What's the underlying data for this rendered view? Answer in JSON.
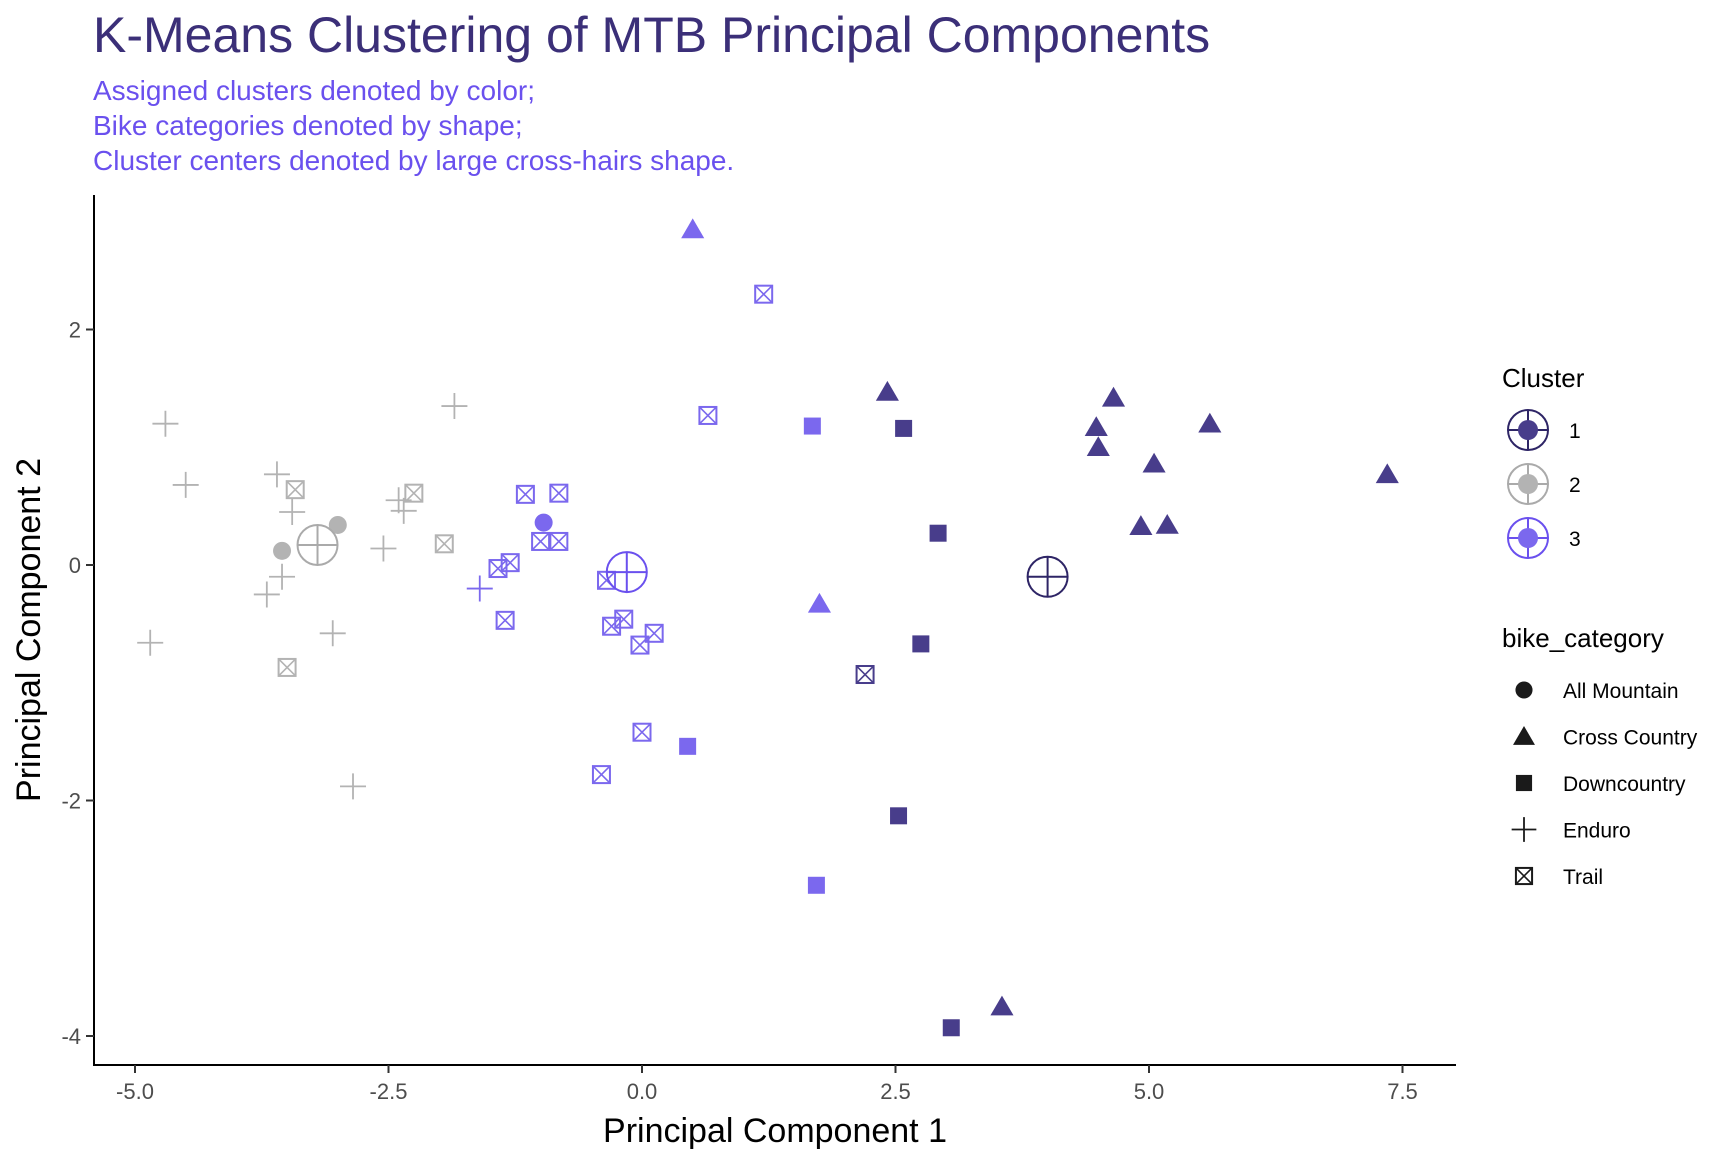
{
  "chart_data": {
    "type": "scatter",
    "title": "K-Means Clustering of MTB Principal Components",
    "subtitle": [
      "Assigned clusters denoted by color;",
      "Bike categories denoted by shape;",
      "Cluster centers denoted by large cross-hairs shape."
    ],
    "xlabel": "Principal Component 1",
    "ylabel": "Principal Component 2",
    "xlim": [
      -5.4,
      8.0
    ],
    "ylim": [
      -4.25,
      3.15
    ],
    "xticks": [
      {
        "value": -5.0,
        "label": "-5.0"
      },
      {
        "value": -2.5,
        "label": "-2.5"
      },
      {
        "value": 0.0,
        "label": "0.0"
      },
      {
        "value": 2.5,
        "label": "2.5"
      },
      {
        "value": 5.0,
        "label": "5.0"
      },
      {
        "value": 7.5,
        "label": "7.5"
      }
    ],
    "yticks": [
      {
        "value": 2,
        "label": "2"
      },
      {
        "value": 0,
        "label": "0"
      },
      {
        "value": -2,
        "label": "-2"
      },
      {
        "value": -4,
        "label": "-4"
      }
    ],
    "grid": false,
    "colors": {
      "1": "#483d8b",
      "2": "#b3b3b3",
      "3": "#7b68ee"
    },
    "center_stroke": {
      "1": "#2e2566",
      "2": "#aaaaaa",
      "3": "#6a50ee"
    },
    "legend": {
      "cluster_title": "Cluster",
      "clusters": [
        "1",
        "2",
        "3"
      ],
      "category_title": "bike_category",
      "categories": [
        "All Mountain",
        "Cross Country",
        "Downcountry",
        "Enduro",
        "Trail"
      ],
      "placement": "right"
    },
    "centers": [
      {
        "cluster": "1",
        "x": 4.0,
        "y": -0.1
      },
      {
        "cluster": "2",
        "x": -3.2,
        "y": 0.17
      },
      {
        "cluster": "3",
        "x": -0.15,
        "y": -0.06
      }
    ],
    "points": [
      {
        "x": -4.7,
        "y": 1.2,
        "cluster": "2",
        "category": "Enduro"
      },
      {
        "x": -4.5,
        "y": 0.68,
        "cluster": "2",
        "category": "Enduro"
      },
      {
        "x": -4.85,
        "y": -0.66,
        "cluster": "2",
        "category": "Enduro"
      },
      {
        "x": -3.6,
        "y": 0.77,
        "cluster": "2",
        "category": "Enduro"
      },
      {
        "x": -3.45,
        "y": 0.45,
        "cluster": "2",
        "category": "Enduro"
      },
      {
        "x": -3.7,
        "y": -0.25,
        "cluster": "2",
        "category": "Enduro"
      },
      {
        "x": -3.55,
        "y": -0.1,
        "cluster": "2",
        "category": "Enduro"
      },
      {
        "x": -3.05,
        "y": -0.58,
        "cluster": "2",
        "category": "Enduro"
      },
      {
        "x": -2.85,
        "y": -1.88,
        "cluster": "2",
        "category": "Enduro"
      },
      {
        "x": -2.55,
        "y": 0.14,
        "cluster": "2",
        "category": "Enduro"
      },
      {
        "x": -2.4,
        "y": 0.55,
        "cluster": "2",
        "category": "Enduro"
      },
      {
        "x": -2.35,
        "y": 0.46,
        "cluster": "2",
        "category": "Enduro"
      },
      {
        "x": -1.85,
        "y": 1.35,
        "cluster": "2",
        "category": "Enduro"
      },
      {
        "x": -3.42,
        "y": 0.64,
        "cluster": "2",
        "category": "Trail"
      },
      {
        "x": -2.25,
        "y": 0.61,
        "cluster": "2",
        "category": "Trail"
      },
      {
        "x": -1.95,
        "y": 0.18,
        "cluster": "2",
        "category": "Trail"
      },
      {
        "x": -3.5,
        "y": -0.87,
        "cluster": "2",
        "category": "Trail"
      },
      {
        "x": -3.55,
        "y": 0.12,
        "cluster": "2",
        "category": "All Mountain"
      },
      {
        "x": -3.0,
        "y": 0.34,
        "cluster": "2",
        "category": "All Mountain"
      },
      {
        "x": -1.6,
        "y": -0.2,
        "cluster": "3",
        "category": "Enduro"
      },
      {
        "x": -0.97,
        "y": 0.36,
        "cluster": "3",
        "category": "All Mountain"
      },
      {
        "x": -1.42,
        "y": -0.03,
        "cluster": "3",
        "category": "Trail"
      },
      {
        "x": -1.3,
        "y": 0.02,
        "cluster": "3",
        "category": "Trail"
      },
      {
        "x": -1.15,
        "y": 0.6,
        "cluster": "3",
        "category": "Trail"
      },
      {
        "x": -0.82,
        "y": 0.61,
        "cluster": "3",
        "category": "Trail"
      },
      {
        "x": -1.0,
        "y": 0.2,
        "cluster": "3",
        "category": "Trail"
      },
      {
        "x": -0.82,
        "y": 0.2,
        "cluster": "3",
        "category": "Trail"
      },
      {
        "x": -1.35,
        "y": -0.47,
        "cluster": "3",
        "category": "Trail"
      },
      {
        "x": -0.35,
        "y": -0.13,
        "cluster": "3",
        "category": "Trail"
      },
      {
        "x": -0.3,
        "y": -0.52,
        "cluster": "3",
        "category": "Trail"
      },
      {
        "x": -0.18,
        "y": -0.46,
        "cluster": "3",
        "category": "Trail"
      },
      {
        "x": -0.02,
        "y": -0.68,
        "cluster": "3",
        "category": "Trail"
      },
      {
        "x": 0.12,
        "y": -0.58,
        "cluster": "3",
        "category": "Trail"
      },
      {
        "x": 0.0,
        "y": -1.42,
        "cluster": "3",
        "category": "Trail"
      },
      {
        "x": -0.4,
        "y": -1.78,
        "cluster": "3",
        "category": "Trail"
      },
      {
        "x": 0.65,
        "y": 1.27,
        "cluster": "3",
        "category": "Trail"
      },
      {
        "x": 1.2,
        "y": 2.3,
        "cluster": "3",
        "category": "Trail"
      },
      {
        "x": 0.5,
        "y": 2.85,
        "cluster": "3",
        "category": "Cross Country"
      },
      {
        "x": 1.75,
        "y": -0.33,
        "cluster": "3",
        "category": "Cross Country"
      },
      {
        "x": 1.68,
        "y": 1.18,
        "cluster": "3",
        "category": "Downcountry"
      },
      {
        "x": 0.45,
        "y": -1.54,
        "cluster": "3",
        "category": "Downcountry"
      },
      {
        "x": 1.72,
        "y": -2.72,
        "cluster": "3",
        "category": "Downcountry"
      },
      {
        "x": 2.2,
        "y": -0.93,
        "cluster": "1",
        "category": "Trail"
      },
      {
        "x": 2.42,
        "y": 1.47,
        "cluster": "1",
        "category": "Cross Country"
      },
      {
        "x": 4.48,
        "y": 1.17,
        "cluster": "1",
        "category": "Cross Country"
      },
      {
        "x": 4.65,
        "y": 1.42,
        "cluster": "1",
        "category": "Cross Country"
      },
      {
        "x": 4.5,
        "y": 1.0,
        "cluster": "1",
        "category": "Cross Country"
      },
      {
        "x": 5.05,
        "y": 0.86,
        "cluster": "1",
        "category": "Cross Country"
      },
      {
        "x": 5.6,
        "y": 1.2,
        "cluster": "1",
        "category": "Cross Country"
      },
      {
        "x": 4.92,
        "y": 0.33,
        "cluster": "1",
        "category": "Cross Country"
      },
      {
        "x": 5.18,
        "y": 0.34,
        "cluster": "1",
        "category": "Cross Country"
      },
      {
        "x": 7.35,
        "y": 0.77,
        "cluster": "1",
        "category": "Cross Country"
      },
      {
        "x": 3.55,
        "y": -3.75,
        "cluster": "1",
        "category": "Cross Country"
      },
      {
        "x": 2.58,
        "y": 1.16,
        "cluster": "1",
        "category": "Downcountry"
      },
      {
        "x": 2.92,
        "y": 0.27,
        "cluster": "1",
        "category": "Downcountry"
      },
      {
        "x": 2.75,
        "y": -0.67,
        "cluster": "1",
        "category": "Downcountry"
      },
      {
        "x": 2.53,
        "y": -2.13,
        "cluster": "1",
        "category": "Downcountry"
      },
      {
        "x": 3.05,
        "y": -3.93,
        "cluster": "1",
        "category": "Downcountry"
      }
    ]
  }
}
